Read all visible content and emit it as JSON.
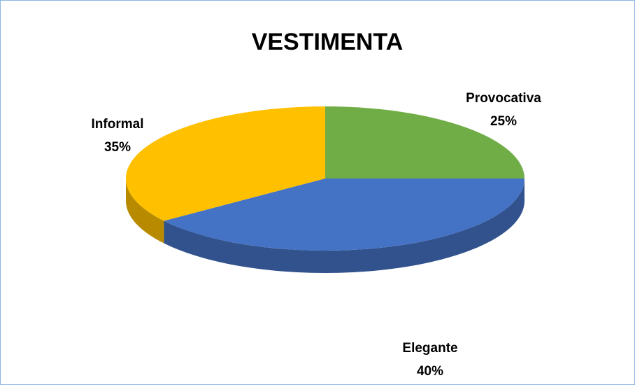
{
  "chart_data": {
    "type": "pie",
    "title": "VESTIMENTA",
    "categories": [
      "Provocativa",
      "Elegante",
      "Informal"
    ],
    "values": [
      25,
      40,
      35
    ],
    "value_labels": [
      "25%",
      "40%",
      "35%"
    ],
    "colors": [
      "#70ad47",
      "#4472c4",
      "#ffc000"
    ]
  }
}
